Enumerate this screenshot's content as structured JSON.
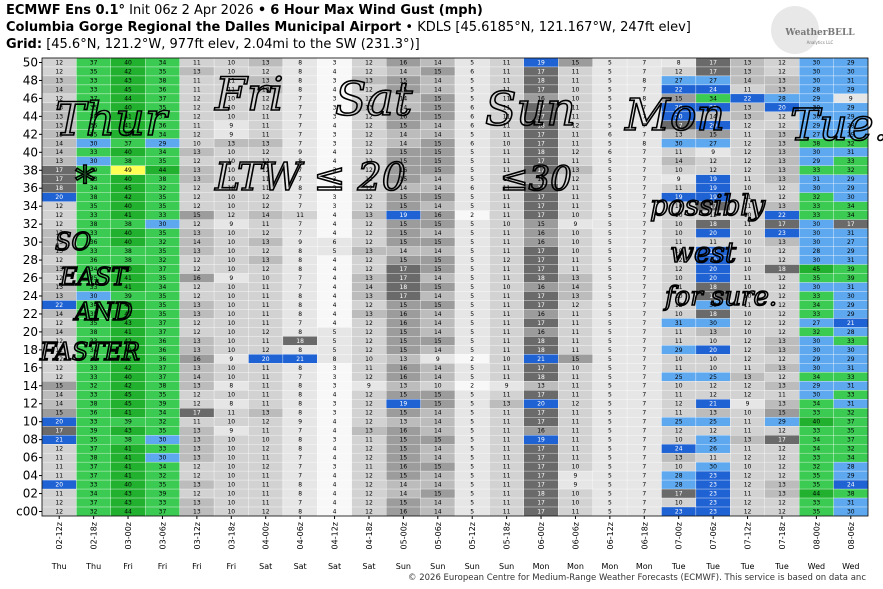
{
  "header": {
    "title": "ECMWF Ens 0.1°",
    "init": "Init 06z 2 Apr 2026",
    "separator": "•",
    "subtitle": "6 Hour Max Wind Gust (mph)",
    "location": "Columbia Gorge Regional the Dalles Municipal Airport",
    "location_detail": "• KDLS [45.6185°N, 121.167°W, 247ft elev]",
    "grid_label": "Grid:",
    "grid_detail": "[45.6°N, 121.2°W, 977ft elev, 2.04mi to the SW (231.3°)]",
    "logo": "WeatherBELL",
    "logo_sub": "Analytics LLC"
  },
  "footer": "© 2026 European Centre for Medium-Range Weather Forecasts (ECMWF). This service is based on data anc",
  "chart_data": {
    "type": "heatmap",
    "columns": [
      "02-12z",
      "02-18z",
      "03-00z",
      "03-06z",
      "03-12z",
      "03-18z",
      "04-00z",
      "04-06z",
      "04-12z",
      "04-18z",
      "05-00z",
      "05-06z",
      "05-12z",
      "05-18z",
      "06-00z",
      "06-06z",
      "06-12z",
      "06-18z",
      "07-00z",
      "07-06z",
      "07-12z",
      "07-18z",
      "08-00z",
      "08-06z"
    ],
    "days": [
      "Thu",
      "Thu",
      "Fri",
      "Fri",
      "Fri",
      "Fri",
      "Sat",
      "Sat",
      "Sat",
      "Sat",
      "Sun",
      "Sun",
      "Sun",
      "Sun",
      "Mon",
      "Mon",
      "Mon",
      "Mon",
      "Tue",
      "Tue",
      "Tue",
      "Tue",
      "Wed",
      "Wed"
    ],
    "row_labels": [
      "50",
      "48",
      "46",
      "44",
      "42",
      "40",
      "38",
      "36",
      "34",
      "32",
      "30",
      "28",
      "26",
      "24",
      "22",
      "20",
      "18",
      "16",
      "14",
      "12",
      "10",
      "08",
      "06",
      "04",
      "02",
      "c00"
    ],
    "values": [
      [
        12,
        37,
        40,
        34,
        11,
        10,
        13,
        8,
        3,
        12,
        16,
        14,
        5,
        11,
        19,
        15,
        5,
        7,
        8,
        17,
        13,
        12,
        30,
        29
      ],
      [
        12,
        35,
        42,
        35,
        13,
        10,
        12,
        8,
        4,
        12,
        14,
        15,
        6,
        11,
        17,
        11,
        5,
        7,
        12,
        17,
        13,
        12,
        30,
        30
      ],
      [
        13,
        33,
        43,
        38,
        11,
        11,
        13,
        8,
        3,
        13,
        15,
        14,
        5,
        11,
        18,
        11,
        5,
        8,
        27,
        27,
        14,
        13,
        30,
        31
      ],
      [
        14,
        33,
        45,
        36,
        11,
        11,
        13,
        8,
        4,
        12,
        15,
        14,
        5,
        11,
        17,
        10,
        5,
        7,
        22,
        24,
        11,
        13,
        28,
        29
      ],
      [
        12,
        37,
        44,
        37,
        12,
        10,
        12,
        7,
        3,
        12,
        14,
        15,
        5,
        11,
        16,
        10,
        5,
        8,
        15,
        34,
        22,
        28,
        29,
        9
      ],
      [
        13,
        35,
        40,
        35,
        12,
        10,
        12,
        7,
        3,
        13,
        14,
        15,
        6,
        11,
        17,
        11,
        5,
        7,
        20,
        20,
        13,
        20,
        30,
        29
      ],
      [
        13,
        38,
        41,
        37,
        12,
        10,
        11,
        7,
        3,
        12,
        16,
        15,
        6,
        11,
        17,
        11,
        5,
        7,
        20,
        14,
        13,
        12,
        30,
        29
      ],
      [
        13,
        35,
        41,
        36,
        11,
        9,
        11,
        7,
        4,
        12,
        15,
        14,
        6,
        11,
        18,
        12,
        5,
        7,
        17,
        20,
        12,
        12,
        29,
        28
      ],
      [
        13,
        35,
        40,
        34,
        12,
        9,
        11,
        7,
        3,
        12,
        14,
        14,
        5,
        11,
        17,
        11,
        6,
        7,
        13,
        15,
        11,
        13,
        27,
        29
      ],
      [
        14,
        30,
        37,
        29,
        10,
        13,
        13,
        7,
        3,
        12,
        14,
        15,
        6,
        10,
        17,
        11,
        5,
        8,
        30,
        27,
        12,
        13,
        38,
        32
      ],
      [
        14,
        33,
        40,
        34,
        13,
        10,
        12,
        9,
        4,
        12,
        15,
        15,
        5,
        11,
        18,
        12,
        6,
        7,
        11,
        9,
        12,
        13,
        30,
        31
      ],
      [
        13,
        30,
        38,
        35,
        12,
        10,
        12,
        8,
        4,
        12,
        15,
        15,
        5,
        11,
        17,
        11,
        5,
        7,
        14,
        12,
        12,
        13,
        29,
        33
      ],
      [
        17,
        39,
        49,
        44,
        13,
        10,
        12,
        7,
        3,
        12,
        16,
        15,
        5,
        11,
        17,
        13,
        5,
        7,
        10,
        12,
        12,
        13,
        33,
        32
      ],
      [
        17,
        33,
        40,
        38,
        13,
        10,
        11,
        7,
        3,
        12,
        15,
        14,
        5,
        11,
        16,
        12,
        5,
        7,
        9,
        19,
        11,
        13,
        31,
        29
      ],
      [
        18,
        34,
        45,
        32,
        12,
        10,
        11,
        8,
        3,
        12,
        14,
        14,
        6,
        11,
        17,
        11,
        5,
        7,
        11,
        19,
        10,
        12,
        30,
        29
      ],
      [
        20,
        38,
        42,
        35,
        12,
        10,
        12,
        7,
        3,
        12,
        15,
        15,
        5,
        11,
        17,
        11,
        5,
        7,
        19,
        19,
        11,
        12,
        32,
        30
      ],
      [
        12,
        35,
        40,
        35,
        12,
        10,
        12,
        7,
        3,
        12,
        15,
        14,
        5,
        11,
        17,
        11,
        5,
        7,
        10,
        17,
        11,
        13,
        33,
        34
      ],
      [
        12,
        33,
        41,
        33,
        15,
        12,
        14,
        11,
        4,
        13,
        19,
        16,
        2,
        11,
        17,
        10,
        5,
        7,
        10,
        12,
        10,
        22,
        33,
        34
      ],
      [
        12,
        38,
        38,
        30,
        12,
        9,
        11,
        7,
        4,
        12,
        15,
        15,
        5,
        10,
        15,
        9,
        5,
        7,
        10,
        18,
        11,
        17,
        30,
        17
      ],
      [
        13,
        33,
        40,
        35,
        13,
        10,
        12,
        7,
        4,
        12,
        15,
        14,
        5,
        11,
        16,
        10,
        5,
        7,
        10,
        20,
        10,
        23,
        30,
        31
      ],
      [
        13,
        36,
        40,
        32,
        14,
        10,
        13,
        9,
        6,
        12,
        15,
        15,
        5,
        11,
        16,
        10,
        5,
        7,
        11,
        11,
        10,
        13,
        30,
        27
      ],
      [
        13,
        33,
        38,
        35,
        13,
        10,
        12,
        8,
        5,
        13,
        14,
        14,
        5,
        11,
        17,
        10,
        5,
        7,
        10,
        19,
        10,
        12,
        28,
        29
      ],
      [
        12,
        36,
        38,
        32,
        12,
        10,
        13,
        8,
        4,
        12,
        15,
        15,
        5,
        12,
        17,
        11,
        5,
        7,
        12,
        20,
        11,
        12,
        30,
        31
      ],
      [
        13,
        34,
        40,
        37,
        12,
        10,
        12,
        8,
        4,
        12,
        17,
        15,
        5,
        11,
        17,
        11,
        5,
        7,
        12,
        20,
        10,
        18,
        45,
        39
      ],
      [
        12,
        35,
        41,
        35,
        16,
        9,
        10,
        7,
        4,
        13,
        17,
        14,
        5,
        11,
        18,
        13,
        5,
        7,
        10,
        20,
        11,
        12,
        35,
        39
      ],
      [
        13,
        33,
        41,
        34,
        12,
        10,
        11,
        7,
        4,
        14,
        18,
        15,
        5,
        10,
        16,
        14,
        5,
        7,
        11,
        18,
        10,
        12,
        30,
        31
      ],
      [
        13,
        30,
        39,
        35,
        12,
        10,
        11,
        8,
        4,
        13,
        17,
        14,
        5,
        11,
        17,
        13,
        5,
        7,
        10,
        18,
        10,
        12,
        33,
        30
      ],
      [
        22,
        34,
        40,
        35,
        13,
        10,
        11,
        8,
        4,
        12,
        15,
        15,
        5,
        11,
        17,
        12,
        5,
        7,
        12,
        30,
        11,
        12,
        34,
        29
      ],
      [
        14,
        35,
        41,
        35,
        13,
        10,
        11,
        8,
        4,
        13,
        16,
        14,
        5,
        11,
        16,
        11,
        5,
        7,
        10,
        18,
        10,
        12,
        33,
        29
      ],
      [
        12,
        35,
        43,
        37,
        12,
        10,
        11,
        7,
        4,
        12,
        16,
        14,
        5,
        11,
        17,
        11,
        5,
        7,
        31,
        30,
        12,
        12,
        27,
        21
      ],
      [
        14,
        38,
        41,
        37,
        12,
        10,
        12,
        8,
        5,
        12,
        15,
        14,
        5,
        11,
        16,
        11,
        5,
        7,
        11,
        13,
        10,
        12,
        32,
        28
      ],
      [
        12,
        33,
        42,
        36,
        13,
        10,
        11,
        18,
        5,
        12,
        15,
        15,
        5,
        11,
        18,
        11,
        5,
        7,
        11,
        10,
        12,
        13,
        30,
        33
      ],
      [
        12,
        34,
        42,
        36,
        13,
        10,
        12,
        8,
        5,
        12,
        15,
        14,
        5,
        11,
        18,
        11,
        5,
        7,
        29,
        20,
        12,
        13,
        30,
        30
      ],
      [
        12,
        36,
        42,
        36,
        16,
        9,
        20,
        21,
        8,
        10,
        13,
        9,
        2,
        10,
        21,
        15,
        5,
        7,
        10,
        10,
        12,
        12,
        29,
        29
      ],
      [
        12,
        33,
        42,
        37,
        13,
        10,
        11,
        8,
        3,
        11,
        16,
        14,
        5,
        11,
        17,
        10,
        5,
        7,
        11,
        10,
        11,
        13,
        30,
        31
      ],
      [
        12,
        33,
        40,
        37,
        14,
        10,
        11,
        7,
        3,
        12,
        16,
        14,
        5,
        11,
        18,
        11,
        5,
        7,
        25,
        25,
        13,
        12,
        34,
        33
      ],
      [
        15,
        32,
        42,
        38,
        13,
        8,
        11,
        8,
        3,
        9,
        13,
        10,
        2,
        9,
        13,
        11,
        5,
        7,
        10,
        12,
        12,
        13,
        29,
        31
      ],
      [
        14,
        33,
        45,
        35,
        12,
        10,
        11,
        8,
        4,
        12,
        15,
        15,
        5,
        11,
        17,
        11,
        5,
        7,
        11,
        12,
        12,
        11,
        30,
        33
      ],
      [
        14,
        38,
        45,
        39,
        12,
        8,
        11,
        8,
        3,
        12,
        19,
        15,
        5,
        13,
        20,
        12,
        5,
        7,
        12,
        21,
        9,
        13,
        34,
        31
      ],
      [
        15,
        36,
        41,
        34,
        17,
        11,
        13,
        8,
        3,
        12,
        15,
        14,
        5,
        11,
        17,
        11,
        5,
        7,
        11,
        13,
        10,
        15,
        33,
        32
      ],
      [
        20,
        33,
        39,
        32,
        11,
        10,
        12,
        9,
        4,
        12,
        13,
        14,
        5,
        11,
        17,
        11,
        5,
        7,
        25,
        25,
        11,
        29,
        40,
        37
      ],
      [
        17,
        39,
        43,
        35,
        13,
        9,
        11,
        7,
        4,
        13,
        16,
        14,
        5,
        11,
        16,
        11,
        5,
        7,
        12,
        12,
        11,
        12,
        33,
        35
      ],
      [
        21,
        35,
        38,
        30,
        13,
        10,
        10,
        8,
        3,
        11,
        15,
        15,
        5,
        11,
        19,
        11,
        5,
        7,
        10,
        25,
        13,
        17,
        34,
        37
      ],
      [
        12,
        37,
        41,
        33,
        13,
        10,
        12,
        8,
        4,
        12,
        15,
        14,
        5,
        11,
        17,
        11,
        5,
        7,
        24,
        26,
        11,
        12,
        34,
        32
      ],
      [
        11,
        38,
        41,
        30,
        13,
        10,
        11,
        7,
        4,
        12,
        15,
        14,
        5,
        11,
        17,
        11,
        5,
        7,
        13,
        11,
        12,
        12,
        33,
        34
      ],
      [
        11,
        37,
        41,
        34,
        12,
        10,
        12,
        7,
        3,
        11,
        16,
        15,
        5,
        11,
        17,
        10,
        5,
        7,
        10,
        30,
        10,
        12,
        32,
        28
      ],
      [
        11,
        37,
        41,
        32,
        12,
        10,
        11,
        7,
        4,
        12,
        15,
        14,
        5,
        11,
        17,
        9,
        5,
        7,
        28,
        23,
        12,
        12,
        35,
        29
      ],
      [
        20,
        33,
        40,
        35,
        13,
        10,
        11,
        8,
        4,
        12,
        14,
        14,
        5,
        11,
        17,
        9,
        5,
        7,
        28,
        23,
        12,
        13,
        35,
        24
      ],
      [
        11,
        34,
        43,
        39,
        12,
        10,
        11,
        8,
        4,
        12,
        14,
        15,
        5,
        11,
        18,
        10,
        5,
        7,
        17,
        23,
        11,
        13,
        44,
        38
      ],
      [
        12,
        37,
        43,
        33,
        13,
        10,
        11,
        7,
        4,
        12,
        15,
        14,
        5,
        11,
        17,
        10,
        5,
        7,
        10,
        23,
        12,
        12,
        33,
        31
      ],
      [
        12,
        32,
        44,
        37,
        13,
        10,
        12,
        8,
        4,
        12,
        16,
        14,
        5,
        11,
        17,
        11,
        5,
        7,
        23,
        23,
        12,
        12,
        35,
        30
      ]
    ],
    "annotations": [
      "Thur",
      "Fri",
      "Sat",
      "Sun",
      "Mon",
      "Tue.",
      "*",
      "LTW ≤ 20",
      "≤30",
      "possibly",
      "west",
      "for sure.",
      "SO",
      "EAST",
      "AND",
      "FASTER"
    ]
  }
}
